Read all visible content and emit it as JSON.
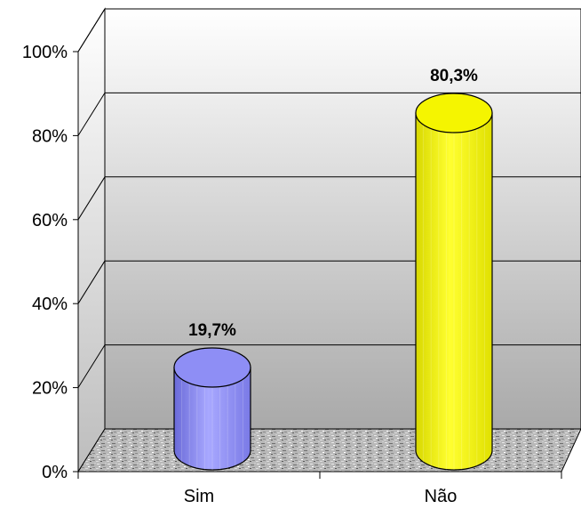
{
  "chart_data": {
    "type": "bar",
    "style": "3d-cylinder",
    "categories": [
      "Sim",
      "Não"
    ],
    "values": [
      19.7,
      80.3
    ],
    "data_labels": [
      "19,7%",
      "80,3%"
    ],
    "colors": [
      "#8e8ef5",
      "#f5f500"
    ],
    "y_ticks": [
      "0%",
      "20%",
      "40%",
      "60%",
      "80%",
      "100%"
    ],
    "ylim": [
      0,
      100
    ],
    "grid": true,
    "legend": "none"
  }
}
